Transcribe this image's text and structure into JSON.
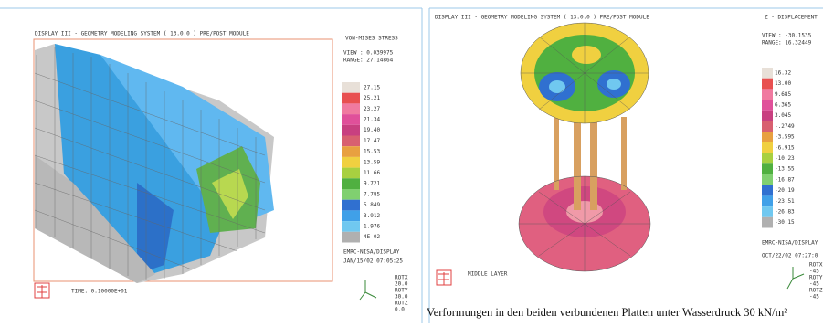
{
  "left_panel": {
    "header": "DISPLAY III - GEOMETRY MODELING SYSTEM ( 13.0.0 )  PRE/POST MODULE",
    "quantity": "VON-MISES STRESS",
    "view": "VIEW : 0.039975",
    "range": "RANGE: 27.14864",
    "legend": [
      {
        "label": "27.15",
        "color": "#e8e0d8"
      },
      {
        "label": "25.21",
        "color": "#e85050"
      },
      {
        "label": "23.27",
        "color": "#f07aa0"
      },
      {
        "label": "21.34",
        "color": "#e0509a"
      },
      {
        "label": "19.40",
        "color": "#c84080"
      },
      {
        "label": "17.47",
        "color": "#d86070"
      },
      {
        "label": "15.53",
        "color": "#e8a040"
      },
      {
        "label": "13.59",
        "color": "#f0d040"
      },
      {
        "label": "11.66",
        "color": "#a8d040"
      },
      {
        "label": "9.721",
        "color": "#50b040"
      },
      {
        "label": "7.785",
        "color": "#80d070"
      },
      {
        "label": "5.849",
        "color": "#3070d0"
      },
      {
        "label": "3.912",
        "color": "#40a0e8"
      },
      {
        "label": "1.976",
        "color": "#70c8f0"
      },
      {
        "label": "4E-02",
        "color": "#b0b0b0"
      }
    ],
    "software": "EMRC-NISA/DISPLAY",
    "date": "JAN/15/02 07:05:25",
    "rotation": [
      "ROTX",
      "20.0",
      "ROTY",
      "30.0",
      "ROTZ",
      "0.0"
    ],
    "time": "TIME:  0.10000E+01"
  },
  "right_panel": {
    "header": "DISPLAY III - GEOMETRY MODELING SYSTEM ( 13.0.0 )  PRE/POST MODULE",
    "quantity": "Z - DISPLACEMENT",
    "view": "VIEW : -30.1535",
    "range": "RANGE: 16.32449",
    "legend": [
      {
        "label": "16.32",
        "color": "#e8e0d8"
      },
      {
        "label": "13.00",
        "color": "#e85050"
      },
      {
        "label": "9.685",
        "color": "#f07aa0"
      },
      {
        "label": "6.365",
        "color": "#e0509a"
      },
      {
        "label": "3.045",
        "color": "#c84080"
      },
      {
        "label": "-.2749",
        "color": "#d86070"
      },
      {
        "label": "-3.595",
        "color": "#e8a040"
      },
      {
        "label": "-6.915",
        "color": "#f0d040"
      },
      {
        "label": "-10.23",
        "color": "#a8d040"
      },
      {
        "label": "-13.55",
        "color": "#50b040"
      },
      {
        "label": "-16.87",
        "color": "#80d070"
      },
      {
        "label": "-20.19",
        "color": "#3070d0"
      },
      {
        "label": "-23.51",
        "color": "#40a0e8"
      },
      {
        "label": "-26.83",
        "color": "#70c8f0"
      },
      {
        "label": "-30.15",
        "color": "#b0b0b0"
      }
    ],
    "software": "EMRC-NISA/DISPLAY",
    "date": "OCT/22/02 07:27:0",
    "rotation": [
      "ROTX",
      "-45",
      "ROTY",
      "-45",
      "ROTZ",
      "-45"
    ],
    "layer": "MIDDLE LAYER"
  },
  "caption": "Verformungen in den beiden verbundenen Platten unter Wasserdruck 30 kN/m²"
}
